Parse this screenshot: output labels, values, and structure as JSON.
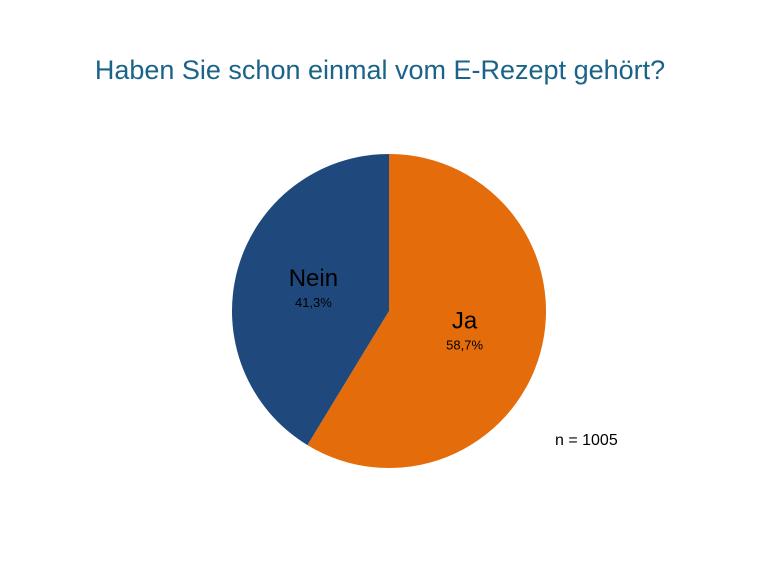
{
  "chart_data": {
    "type": "pie",
    "title": "Haben Sie schon einmal vom E-Rezept gehört?",
    "categories": [
      "Ja",
      "Nein"
    ],
    "values": [
      58.7,
      41.3
    ],
    "value_labels": [
      "58,7%",
      "41,3%"
    ],
    "colors": [
      "#e46c0a",
      "#1f497d"
    ],
    "annotation": "n = 1005"
  }
}
